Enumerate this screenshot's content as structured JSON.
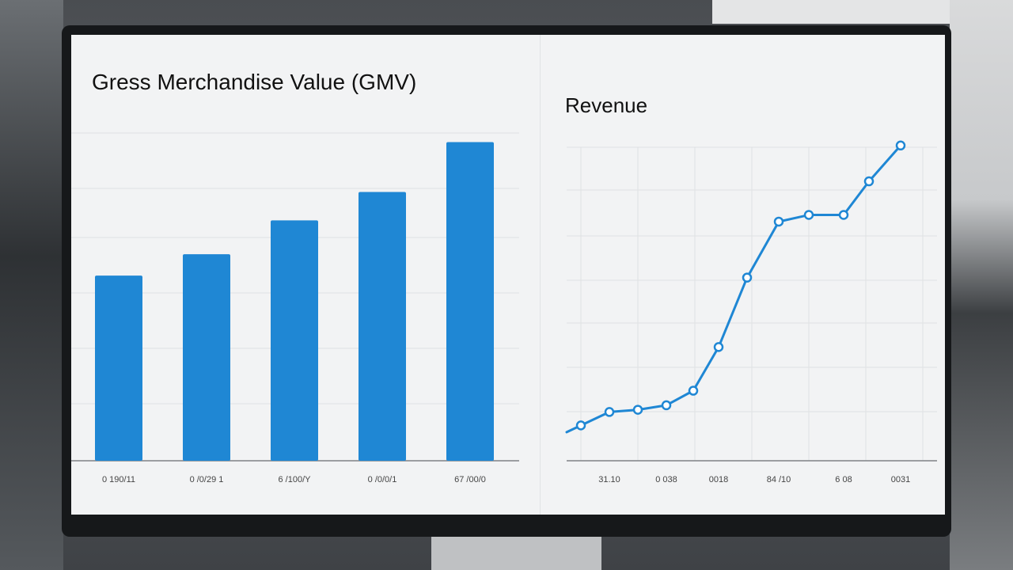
{
  "chart_data": [
    {
      "type": "bar",
      "title": "Gress Merchandise Value (GMV)",
      "categories": [
        "0 190/11",
        "0 /0/29 1",
        "6 /100/Y",
        "0 /0/0/1",
        "67 /00/0"
      ],
      "values": [
        104,
        116,
        135,
        151,
        179
      ],
      "ylim": [
        0,
        185
      ],
      "color": "#1f87d4",
      "grid": true
    },
    {
      "type": "line",
      "title": "Revenue",
      "categories": [
        "",
        "",
        "31.10",
        "",
        "0 038",
        "",
        "0018",
        "",
        "84 /10",
        "",
        "6 08",
        "",
        "0031"
      ],
      "values": [
        0,
        6,
        18,
        20,
        24,
        37,
        76,
        138,
        188,
        194,
        194,
        224,
        256
      ],
      "ylim": [
        -10,
        270
      ],
      "color": "#1f87d4",
      "grid": true
    }
  ]
}
